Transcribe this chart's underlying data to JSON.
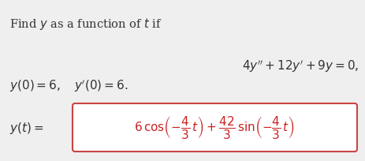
{
  "bg_color": "#efefef",
  "box_color": "#ffffff",
  "box_border_color": "#cc4444",
  "text_color": "#333333",
  "red_color": "#cc2222",
  "figsize": [
    4.63,
    2.04
  ],
  "dpi": 100
}
